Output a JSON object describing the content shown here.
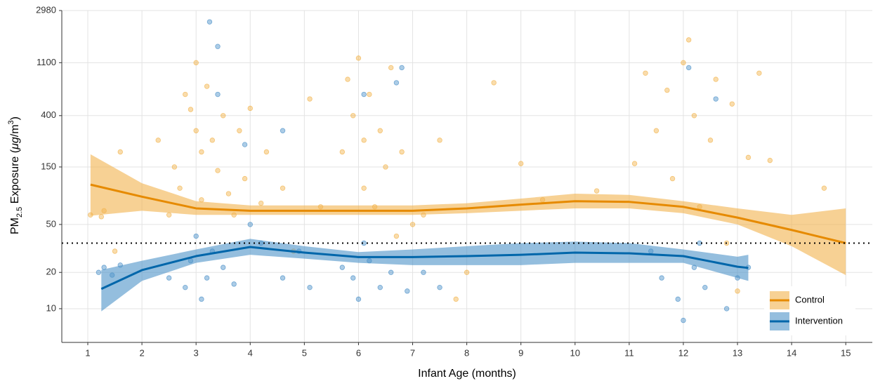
{
  "chart_data": {
    "type": "scatter",
    "xlabel": "Infant Age (months)",
    "ylabel": [
      "PM",
      "2.5",
      " Exposure (",
      "μg",
      "/m",
      "3",
      ")"
    ],
    "log_y": true,
    "grid": true,
    "legend": "bottom-right",
    "xlim": [
      0.52,
      15.49
    ],
    "ylim": [
      5.25,
      2980
    ],
    "xticks": [
      1,
      2,
      3,
      4,
      5,
      6,
      7,
      8,
      9,
      10,
      11,
      12,
      13,
      14,
      15
    ],
    "yticks": [
      10,
      20,
      50,
      150,
      400,
      1100,
      2980
    ],
    "hline": 35,
    "series": [
      {
        "name": "Control",
        "color": "#E68A00",
        "point_color": "#F0A830",
        "ribbon_color": "#F2B24D",
        "x": [
          1.05,
          1.25,
          1.3,
          1.6,
          1.5,
          2.3,
          2.5,
          2.6,
          2.7,
          2.8,
          2.9,
          3.0,
          3.0,
          3.1,
          3.1,
          3.2,
          3.3,
          3.4,
          3.5,
          3.6,
          3.7,
          3.8,
          3.9,
          4.0,
          4.2,
          4.3,
          4.6,
          4.8,
          5.1,
          5.3,
          5.7,
          5.8,
          5.9,
          6.0,
          6.1,
          6.1,
          6.2,
          6.3,
          6.4,
          6.5,
          6.6,
          6.7,
          6.8,
          7.0,
          7.2,
          7.5,
          7.8,
          8.0,
          8.5,
          9.0,
          9.4,
          10.4,
          11.1,
          11.3,
          11.5,
          11.7,
          11.8,
          12.0,
          12.1,
          12.2,
          12.3,
          12.5,
          12.6,
          12.8,
          12.9,
          13.0,
          13.2,
          13.4,
          13.6,
          14.6
        ],
        "values": [
          60,
          58,
          65,
          200,
          30,
          250,
          60,
          150,
          100,
          600,
          450,
          1100,
          300,
          200,
          80,
          700,
          250,
          140,
          400,
          90,
          60,
          300,
          120,
          460,
          75,
          200,
          100,
          30,
          550,
          70,
          200,
          800,
          400,
          1200,
          250,
          100,
          600,
          70,
          300,
          150,
          1000,
          40,
          200,
          50,
          60,
          250,
          12,
          20,
          750,
          160,
          80,
          95,
          160,
          900,
          300,
          650,
          120,
          1100,
          1700,
          400,
          70,
          250,
          800,
          35,
          500,
          14,
          180,
          900,
          170,
          100
        ],
        "fit": {
          "x": [
            1.05,
            2,
            3,
            4,
            5,
            6,
            7,
            8,
            9,
            10,
            11,
            12,
            13,
            14,
            15
          ],
          "values": [
            107,
            85,
            68,
            65,
            65,
            65,
            65,
            68,
            73,
            78,
            77,
            70,
            57,
            45,
            35
          ],
          "lower": [
            59,
            65,
            60,
            60,
            60,
            60,
            60,
            62,
            65,
            68,
            68,
            62,
            50,
            33,
            19
          ],
          "upper": [
            191,
            110,
            78,
            72,
            72,
            72,
            72,
            75,
            82,
            90,
            88,
            78,
            68,
            60,
            68
          ]
        }
      },
      {
        "name": "Intervention",
        "color": "#0066AA",
        "point_color": "#2F7FC0",
        "ribbon_color": "#4C93C8",
        "x": [
          1.2,
          1.3,
          1.45,
          1.6,
          2.5,
          2.8,
          2.9,
          3.0,
          3.1,
          3.2,
          3.25,
          3.3,
          3.4,
          3.4,
          3.5,
          3.7,
          3.9,
          4.0,
          4.2,
          4.6,
          4.6,
          4.9,
          5.1,
          5.7,
          5.9,
          6.0,
          6.1,
          6.1,
          6.2,
          6.4,
          6.6,
          6.7,
          6.8,
          6.9,
          7.2,
          7.5,
          11.4,
          11.6,
          11.9,
          12.0,
          12.1,
          12.2,
          12.3,
          12.4,
          12.6,
          12.8,
          13.0,
          13.2
        ],
        "values": [
          20,
          22,
          19,
          23,
          18,
          15,
          25,
          40,
          12,
          18,
          2400,
          30,
          1500,
          600,
          22,
          16,
          230,
          50,
          35,
          300,
          18,
          30,
          15,
          22,
          18,
          12,
          35,
          600,
          25,
          15,
          20,
          750,
          1000,
          14,
          20,
          15,
          30,
          18,
          12,
          8,
          1000,
          22,
          35,
          15,
          550,
          10,
          18,
          22
        ],
        "fit": {
          "x": [
            1.25,
            2,
            3,
            4,
            5,
            6,
            7,
            8,
            9,
            10,
            11,
            12,
            13,
            13.2
          ],
          "values": [
            14.6,
            20.9,
            27.3,
            32.5,
            29.2,
            26.8,
            26.8,
            27.3,
            28,
            29.2,
            28.8,
            27.3,
            22.3,
            21.8
          ],
          "lower": [
            9.5,
            17,
            24,
            28,
            26,
            24,
            23,
            23,
            23,
            24,
            24,
            24,
            18,
            17
          ],
          "upper": [
            21,
            25,
            31,
            38,
            33,
            29.5,
            31,
            33,
            35,
            36,
            35,
            31,
            27,
            28
          ]
        }
      }
    ]
  }
}
